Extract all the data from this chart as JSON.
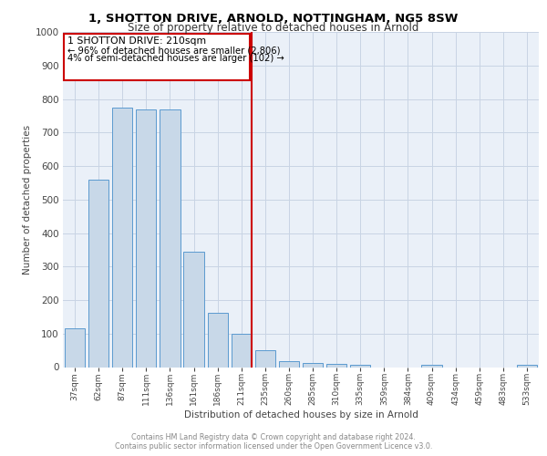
{
  "title_line1": "1, SHOTTON DRIVE, ARNOLD, NOTTINGHAM, NG5 8SW",
  "title_line2": "Size of property relative to detached houses in Arnold",
  "xlabel": "Distribution of detached houses by size in Arnold",
  "ylabel": "Number of detached properties",
  "bar_labels": [
    "37sqm",
    "62sqm",
    "87sqm",
    "111sqm",
    "136sqm",
    "161sqm",
    "186sqm",
    "211sqm",
    "235sqm",
    "260sqm",
    "285sqm",
    "310sqm",
    "335sqm",
    "359sqm",
    "384sqm",
    "409sqm",
    "434sqm",
    "459sqm",
    "483sqm",
    "533sqm"
  ],
  "bar_values": [
    115,
    560,
    775,
    770,
    770,
    345,
    163,
    98,
    50,
    18,
    12,
    10,
    7,
    0,
    0,
    8,
    0,
    0,
    0,
    7
  ],
  "bar_color": "#c8d8e8",
  "bar_edge_color": "#5b9ad0",
  "ylim": [
    0,
    1000
  ],
  "yticks": [
    0,
    100,
    200,
    300,
    400,
    500,
    600,
    700,
    800,
    900,
    1000
  ],
  "red_line_index": 7,
  "annotation_title": "1 SHOTTON DRIVE: 210sqm",
  "annotation_line2": "← 96% of detached houses are smaller (2,806)",
  "annotation_line3": "4% of semi-detached houses are larger (102) →",
  "annotation_color": "#cc0000",
  "grid_color": "#c8d4e4",
  "background_color": "#eaf0f8",
  "footer_line1": "Contains HM Land Registry data © Crown copyright and database right 2024.",
  "footer_line2": "Contains public sector information licensed under the Open Government Licence v3.0."
}
